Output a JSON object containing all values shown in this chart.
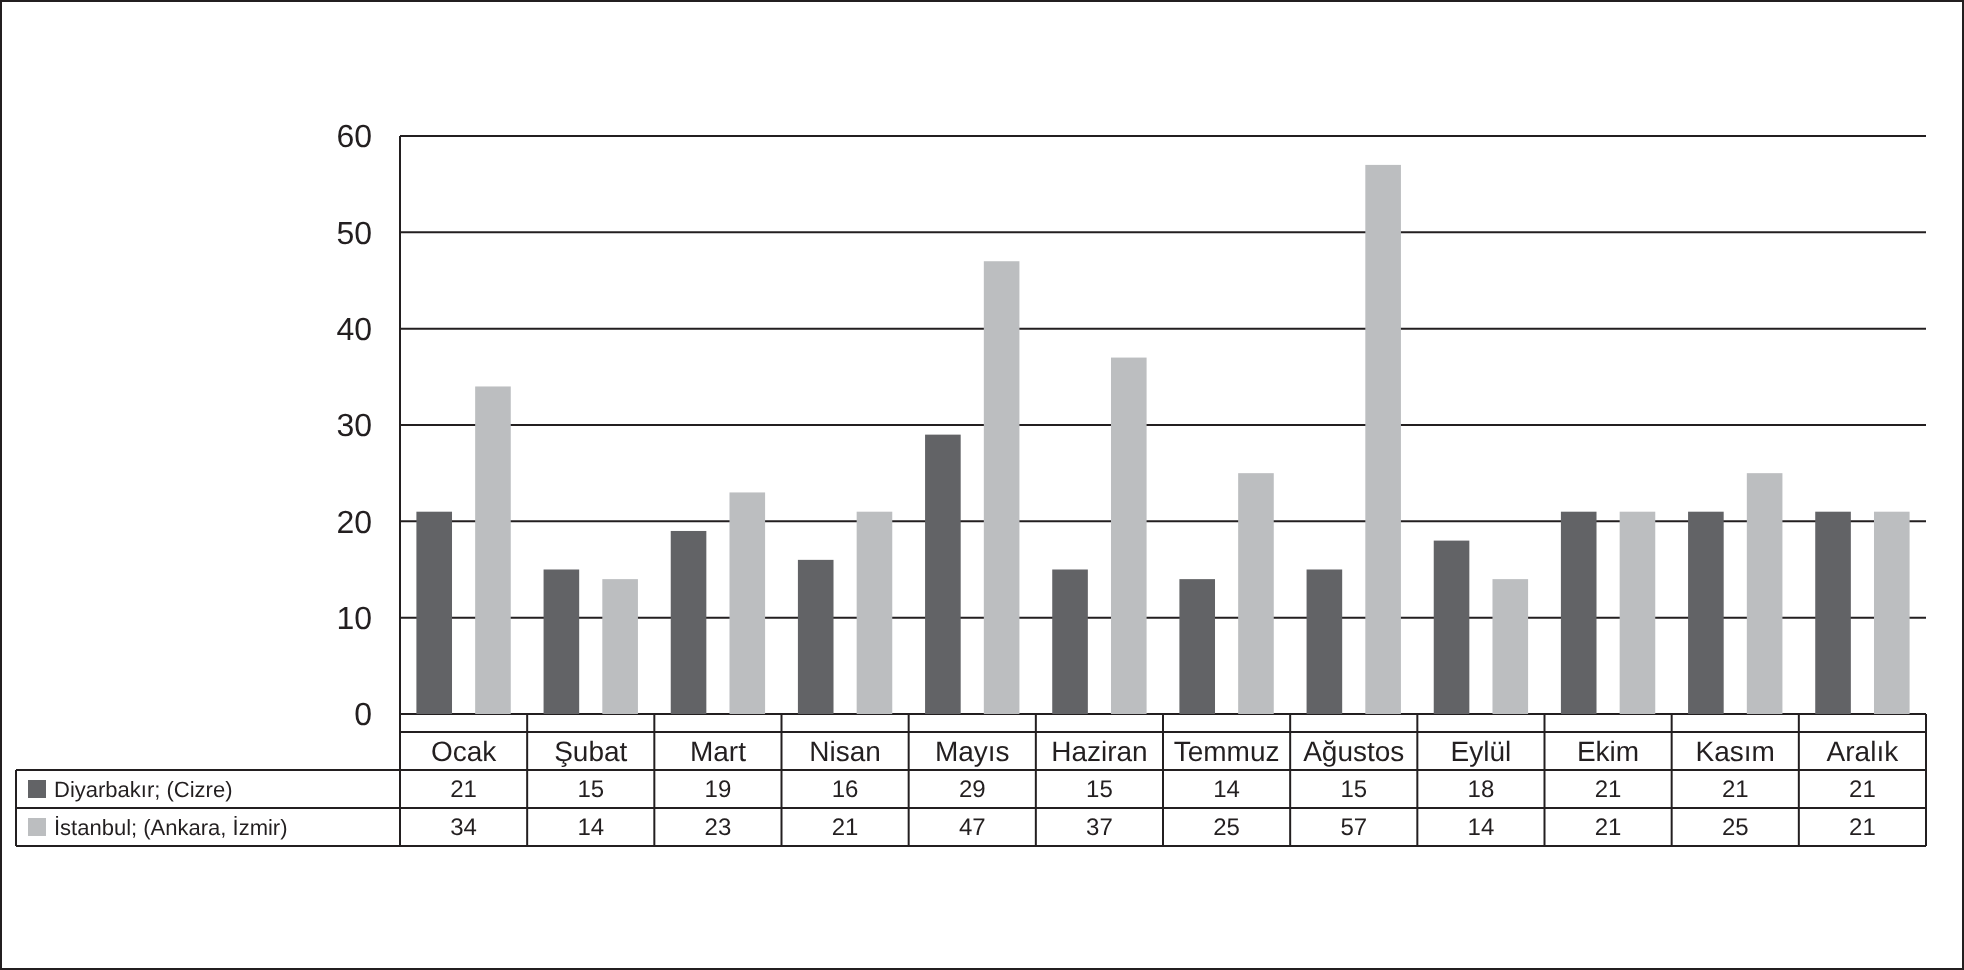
{
  "chart_data": {
    "type": "bar",
    "categories": [
      "Ocak",
      "Şubat",
      "Mart",
      "Nisan",
      "Mayıs",
      "Haziran",
      "Temmuz",
      "Ağustos",
      "Eylül",
      "Ekim",
      "Kasım",
      "Aralık"
    ],
    "series": [
      {
        "name": "Diyarbakır; (Cizre)",
        "color": "#626366",
        "values": [
          21,
          15,
          19,
          16,
          29,
          15,
          14,
          15,
          18,
          21,
          21,
          21
        ]
      },
      {
        "name": "İstanbul; (Ankara, İzmir)",
        "color": "#bcbec0",
        "values": [
          34,
          14,
          23,
          21,
          47,
          37,
          25,
          57,
          14,
          21,
          25,
          21
        ]
      }
    ],
    "ylim": [
      0,
      60
    ],
    "yticks": [
      0,
      10,
      20,
      30,
      40,
      50,
      60
    ],
    "grid": "y",
    "legend": "bottom left",
    "data_labels": true
  }
}
